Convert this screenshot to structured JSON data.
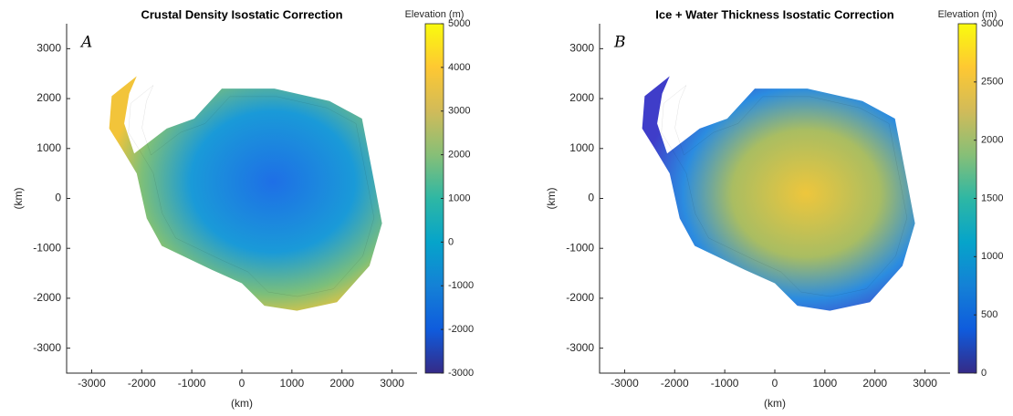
{
  "chart_data": [
    {
      "type": "heatmap",
      "title": "Crustal Density Isostatic Correction",
      "panel_label": "A",
      "xlabel": "(km)",
      "ylabel": "(km)",
      "xlim": [
        -3500,
        3500
      ],
      "ylim": [
        -3500,
        3500
      ],
      "xticks": [
        -3000,
        -2000,
        -1000,
        0,
        1000,
        2000,
        3000
      ],
      "yticks": [
        -3000,
        -2000,
        -1000,
        0,
        1000,
        2000,
        3000
      ],
      "colorbar": {
        "label": "Elevation (m)",
        "lim": [
          -3000,
          5000
        ],
        "ticks": [
          -3000,
          -2000,
          -1000,
          0,
          1000,
          2000,
          3000,
          4000,
          5000
        ],
        "colormap": [
          "#352a87",
          "#0f5cdd",
          "#1481d6",
          "#06a4ca",
          "#2eb7a4",
          "#87bf77",
          "#d1bb59",
          "#fec832",
          "#f9fb0e"
        ]
      }
    },
    {
      "type": "heatmap",
      "title": "Ice + Water Thickness Isostatic Correction",
      "panel_label": "B",
      "xlabel": "(km)",
      "ylabel": "(km)",
      "xlim": [
        -3500,
        3500
      ],
      "ylim": [
        -3500,
        3500
      ],
      "xticks": [
        -3000,
        -2000,
        -1000,
        0,
        1000,
        2000,
        3000
      ],
      "yticks": [
        -3000,
        -2000,
        -1000,
        0,
        1000,
        2000,
        3000
      ],
      "colorbar": {
        "label": "Elevation (m)",
        "lim": [
          0,
          3000
        ],
        "ticks": [
          0,
          500,
          1000,
          1500,
          2000,
          2500,
          3000
        ],
        "colormap": [
          "#352a87",
          "#0f5cdd",
          "#1481d6",
          "#06a4ca",
          "#2eb7a4",
          "#87bf77",
          "#d1bb59",
          "#fec832",
          "#f9fb0e"
        ]
      }
    }
  ]
}
